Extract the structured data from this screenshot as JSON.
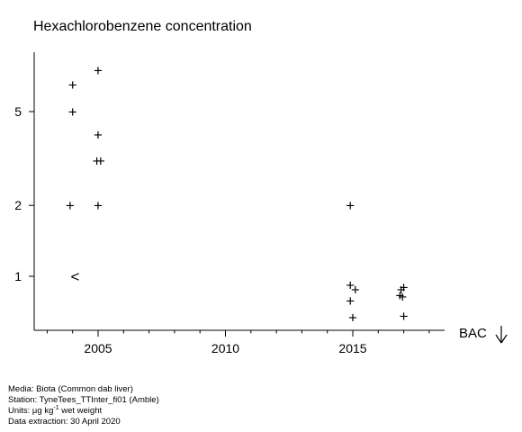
{
  "chart_data": {
    "type": "scatter",
    "title": "Hexachlorobenzene concentration",
    "xlabel": "",
    "ylabel": "",
    "y_scale": "log",
    "xlim": [
      2002.5,
      2018.5
    ],
    "ylim": [
      0.6,
      9
    ],
    "x_ticks": [
      2005,
      2010,
      2015
    ],
    "x_minor_ticks": [
      2003,
      2004,
      2006,
      2007,
      2008,
      2009,
      2011,
      2012,
      2013,
      2014,
      2016,
      2017,
      2018
    ],
    "y_ticks": [
      1,
      2,
      5
    ],
    "grid": false,
    "annotation": "BAC",
    "points": [
      {
        "x": 2004.0,
        "y": 6.5,
        "marker": "+"
      },
      {
        "x": 2004.0,
        "y": 5.0,
        "marker": "+"
      },
      {
        "x": 2003.9,
        "y": 2.0,
        "marker": "+"
      },
      {
        "x": 2004.1,
        "y": 1.0,
        "marker": "<"
      },
      {
        "x": 2005.0,
        "y": 7.5,
        "marker": "+"
      },
      {
        "x": 2005.0,
        "y": 4.0,
        "marker": "+"
      },
      {
        "x": 2004.95,
        "y": 3.1,
        "marker": "+"
      },
      {
        "x": 2005.1,
        "y": 3.1,
        "marker": "+"
      },
      {
        "x": 2005.0,
        "y": 2.0,
        "marker": "+"
      },
      {
        "x": 2014.9,
        "y": 2.0,
        "marker": "+"
      },
      {
        "x": 2014.9,
        "y": 0.92,
        "marker": "+"
      },
      {
        "x": 2015.1,
        "y": 0.88,
        "marker": "+"
      },
      {
        "x": 2014.9,
        "y": 0.79,
        "marker": "+"
      },
      {
        "x": 2015.0,
        "y": 0.67,
        "marker": "+"
      },
      {
        "x": 2016.9,
        "y": 0.88,
        "marker": "+"
      },
      {
        "x": 2017.0,
        "y": 0.9,
        "marker": "+"
      },
      {
        "x": 2016.85,
        "y": 0.83,
        "marker": "+"
      },
      {
        "x": 2016.95,
        "y": 0.82,
        "marker": "+"
      },
      {
        "x": 2017.0,
        "y": 0.68,
        "marker": "+"
      }
    ]
  },
  "footer": {
    "media": "Media: Biota (Common dab liver)",
    "station": "Station: TyneTees_TTInter_fi01 (Amble)",
    "units_prefix": "Units:  µg kg",
    "units_exp": "-1",
    "units_suffix": " wet weight",
    "extraction": "Data extraction: 30 April 2020"
  },
  "colors": {
    "ink": "#000000",
    "background": "#ffffff"
  }
}
